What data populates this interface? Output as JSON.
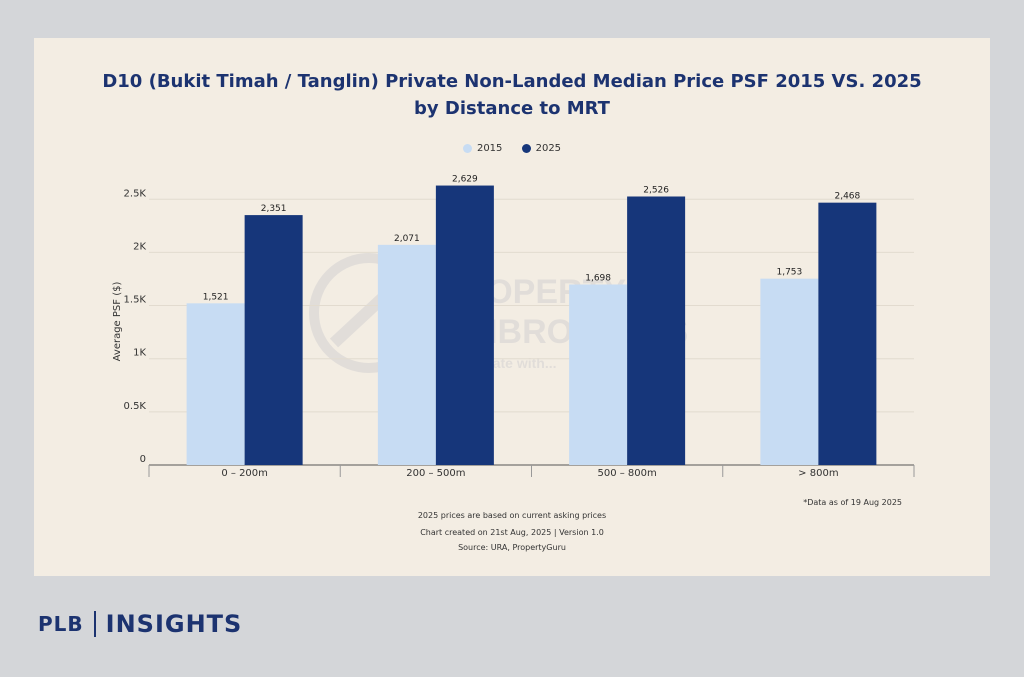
{
  "chart": {
    "title_line1": "D10 (Bukit Timah / Tanglin) Private Non-Landed Median Price PSF 2015 VS. 2025",
    "title_line2": "by Distance to MRT",
    "footnote_right": "*Data as of 19 Aug 2025",
    "footer_line1": "2025 prices are based on current asking prices",
    "footer_line2": "Chart created on 21st Aug, 2025 | Version 1.0",
    "footer_line3": "Source: URA, PropertyGuru"
  },
  "colors": {
    "s2015": "#c7dcf3",
    "s2025": "#16367a",
    "title": "#1c3370"
  },
  "watermark": {
    "line1": "PROPERTY",
    "line2": "LIMBROTHERS",
    "line3": "Real estate with..."
  },
  "brand": {
    "left": "PLB",
    "right": "INSIGHTS"
  },
  "chart_data": {
    "type": "bar",
    "title": "D10 (Bukit Timah / Tanglin) Private Non-Landed Median Price PSF 2015 VS. 2025 by Distance to MRT",
    "categories": [
      "0 – 200m",
      "200 – 500m",
      "500 – 800m",
      "> 800m"
    ],
    "series": [
      {
        "name": "2015",
        "values": [
          1521,
          2071,
          1698,
          1753
        ],
        "labels": [
          "1,521",
          "2,071",
          "1,698",
          "1,753"
        ]
      },
      {
        "name": "2025",
        "values": [
          2351,
          2629,
          2526,
          2468
        ],
        "labels": [
          "2,351",
          "2,629",
          "2,526",
          "2,468"
        ]
      }
    ],
    "ylabel": "Average PSF ($)",
    "xlabel": "",
    "ylim": [
      0,
      2700
    ],
    "yticks": [
      0,
      500,
      1000,
      1500,
      2000,
      2500
    ],
    "ytick_labels": [
      "0",
      "0.5K",
      "1K",
      "1.5K",
      "2K",
      "2.5K"
    ],
    "grid": true,
    "legend": "top-center"
  }
}
